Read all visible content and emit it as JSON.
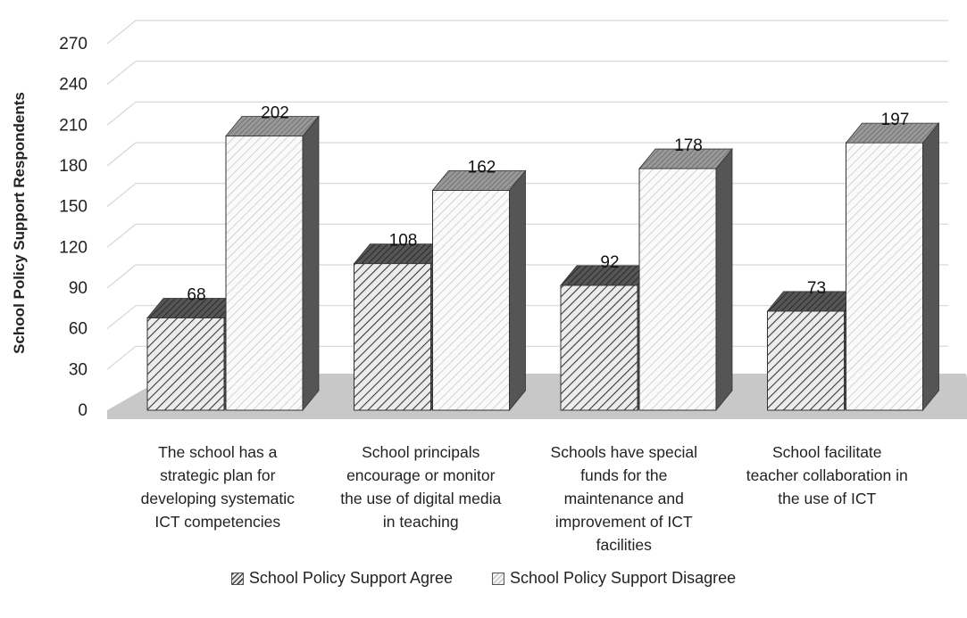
{
  "chart_data": {
    "type": "bar",
    "title": "",
    "xlabel": "",
    "ylabel": "School Policy Support Respondents",
    "ylim": [
      0,
      270
    ],
    "yticks": [
      0,
      30,
      60,
      90,
      120,
      150,
      180,
      210,
      240,
      270
    ],
    "grid": true,
    "legend_position": "bottom",
    "categories": [
      [
        "The school has a",
        "strategic plan for",
        "developing systematic",
        "ICT competencies"
      ],
      [
        "School principals",
        "encourage or monitor",
        "the use of digital media",
        "in teaching"
      ],
      [
        "Schools have special",
        "funds for the",
        "maintenance and",
        "improvement of ICT",
        "facilities"
      ],
      [
        "School facilitate",
        "teacher collaboration in",
        "the use of ICT"
      ]
    ],
    "series": [
      {
        "name": "School Policy Support Agree",
        "values": [
          68,
          108,
          92,
          73
        ]
      },
      {
        "name": "School Policy Support Disagree",
        "values": [
          202,
          162,
          178,
          197
        ]
      }
    ],
    "colors": {
      "agree_stripe": "#444444",
      "disagree_stripe": "#bbbbbb",
      "floor": "#c8c8c8"
    }
  }
}
